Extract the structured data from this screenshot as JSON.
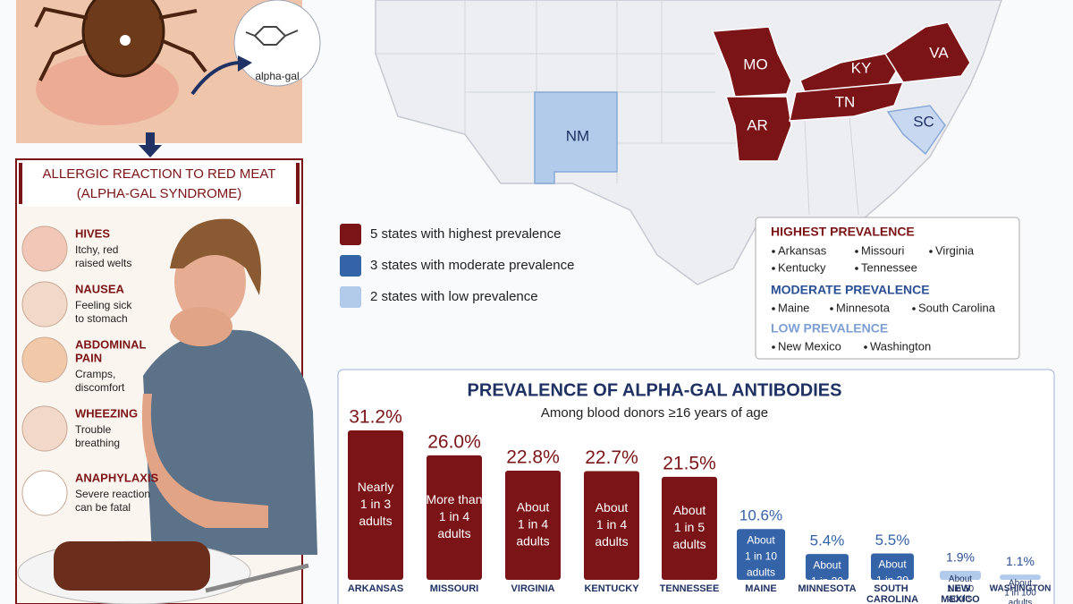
{
  "illustration": {
    "molecule_label": "alpha-gal"
  },
  "panel": {
    "title": [
      "ALLERGIC REACTION TO RED MEAT",
      "(ALPHA-GAL SYNDROME)"
    ],
    "symptoms": [
      {
        "name": [
          "HIVES"
        ],
        "desc": [
          "Itchy, red",
          "raised welts"
        ]
      },
      {
        "name": [
          "NAUSEA"
        ],
        "desc": [
          "Feeling sick",
          "to stomach"
        ]
      },
      {
        "name": [
          "ABDOMINAL",
          "PAIN"
        ],
        "desc": [
          "Cramps,",
          "discomfort"
        ]
      },
      {
        "name": [
          "WHEEZING"
        ],
        "desc": [
          "Trouble",
          "breathing"
        ]
      },
      {
        "name": [
          "ANAPHYLAXIS"
        ],
        "desc": [
          "Severe reaction",
          "can be fatal"
        ]
      }
    ]
  },
  "map": {
    "state_labels": [
      "MO",
      "AR",
      "KY",
      "TN",
      "VA",
      "NM",
      "SC"
    ],
    "legend": [
      {
        "label": "5 states with highest prevalence",
        "color": "#7b1416"
      },
      {
        "label": "3 states with moderate prevalence",
        "color": "#3563a8"
      },
      {
        "label": "2 states with low prevalence",
        "color": "#b3cbeb"
      }
    ]
  },
  "prevalence_box": {
    "groups": [
      {
        "heading": "HIGHEST PREVALENCE",
        "color": "#7b1416",
        "states": [
          "Arkansas",
          "Missouri",
          "Virginia",
          "Kentucky",
          "Tennessee"
        ]
      },
      {
        "heading": "MODERATE PREVALENCE",
        "color": "#2a4f94",
        "states": [
          "Maine",
          "Minnesota",
          "South Carolina"
        ]
      },
      {
        "heading": "LOW PREVALENCE",
        "color": "#7d9fd3",
        "states": [
          "New Mexico",
          "Washington"
        ]
      }
    ]
  },
  "chart_data": {
    "type": "bar",
    "title": "PREVALENCE OF ALPHA-GAL ANTIBODIES",
    "subtitle": "Among blood donors ≥16 years of age",
    "categories": [
      "ARKANSAS",
      "MISSOURI",
      "VIRGINIA",
      "KENTUCKY",
      "TENNESSEE",
      "MAINE",
      "MINNESOTA",
      "SOUTH CAROLINA",
      "NEW MEXICO",
      "WASHINGTON"
    ],
    "values": [
      31.2,
      26.0,
      22.8,
      22.7,
      21.5,
      10.6,
      5.4,
      5.5,
      1.9,
      1.1
    ],
    "value_labels": [
      "31.2%",
      "26.0%",
      "22.8%",
      "22.7%",
      "21.5%",
      "10.6%",
      "5.4%",
      "5.5%",
      "1.9%",
      "1.1%"
    ],
    "annotations": [
      [
        "Nearly",
        "1 in 3",
        "adults"
      ],
      [
        "More than",
        "1 in 4",
        "adults"
      ],
      [
        "About",
        "1 in 4",
        "adults"
      ],
      [
        "About",
        "1 in 4",
        "adults"
      ],
      [
        "About",
        "1 in 5",
        "adults"
      ],
      [
        "About",
        "1 in 10",
        "adults"
      ],
      [
        "About",
        "1 in 20",
        "adults"
      ],
      [
        "About",
        "1 in 20",
        "adults"
      ],
      [
        "About",
        "1 in 50",
        "adults"
      ],
      [
        "About",
        "1 in 100",
        "adults"
      ]
    ],
    "colors": [
      "#7b1416",
      "#7b1416",
      "#7b1416",
      "#7b1416",
      "#7b1416",
      "#3563a8",
      "#3563a8",
      "#3563a8",
      "#b3cbeb",
      "#b3cbeb"
    ]
  }
}
